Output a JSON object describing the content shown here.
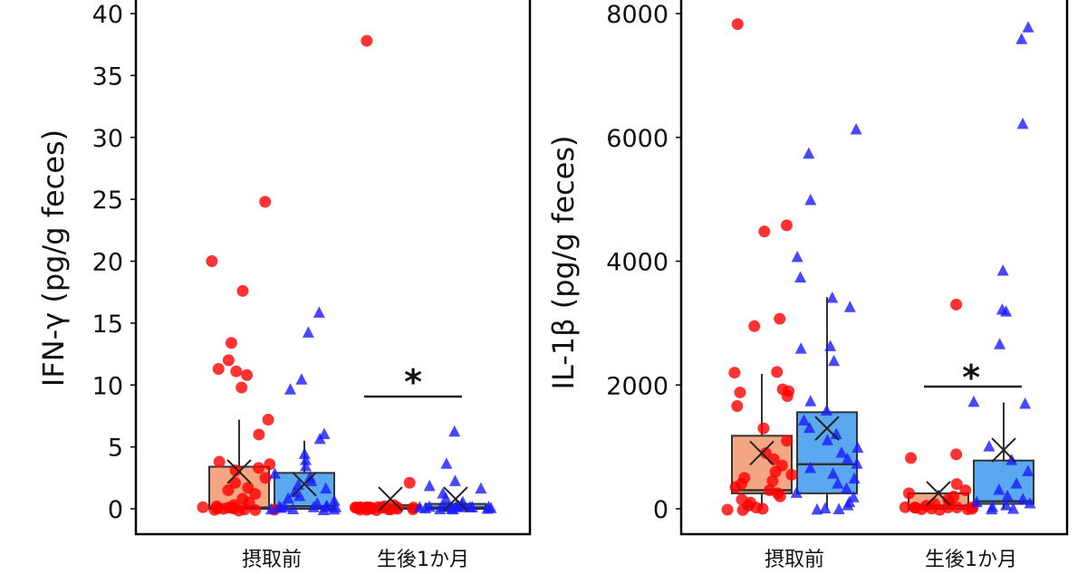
{
  "chart_data": [
    {
      "type": "box",
      "ylabel": "IFN-γ (pg/g feces)",
      "ylim": [
        0,
        40
      ],
      "yticks": [
        0,
        5,
        10,
        15,
        20,
        25,
        30,
        35,
        40
      ],
      "categories": [
        "摂取前",
        "生後1か月"
      ],
      "annotation": "*",
      "colors": {
        "red_fill": "#f4a582",
        "red_points": "#ff0000",
        "blue_fill": "#5aa9f0",
        "blue_points": "#1a1aff"
      },
      "series": [
        {
          "color": "#ff0000",
          "marker": "circle",
          "boxes": [
            {
              "category": "摂取前",
              "min": 0,
              "q1": 0,
              "median": 0.1,
              "q3": 3.4,
              "max": 7.2,
              "mean": 3.0
            },
            {
              "category": "生後1か月",
              "min": 0,
              "q1": 0,
              "median": 0.1,
              "q3": 0.3,
              "max": 0.3,
              "mean": 0.8
            }
          ],
          "points": [
            {
              "category": "摂取前",
              "values": [
                24.8,
                20,
                17.6,
                13.4,
                11.1,
                10.8,
                11.3,
                12,
                9.8,
                7.2,
                6,
                3.8,
                3.6,
                3.3,
                3.1,
                2.5,
                2.1,
                1.7,
                1.5,
                1.2,
                0.8,
                0.5,
                0.3,
                0.2,
                0.1,
                0,
                0,
                0,
                0,
                0,
                0,
                0,
                0,
                0,
                0
              ]
            },
            {
              "category": "生後1か月",
              "values": [
                37.8,
                2.1,
                0.3,
                0.2,
                0.1,
                0,
                0,
                0,
                0,
                0,
                0,
                0,
                0,
                0,
                0,
                0,
                0,
                0,
                0,
                0,
                0,
                0,
                0,
                0,
                0
              ]
            }
          ]
        },
        {
          "color": "#1a1aff",
          "marker": "triangle",
          "boxes": [
            {
              "category": "摂取前",
              "min": 0,
              "q1": 0,
              "median": 0.2,
              "q3": 2.9,
              "max": 5.5,
              "mean": 2.0
            },
            {
              "category": "生後1か月",
              "min": 0,
              "q1": 0,
              "median": 0.1,
              "q3": 0.4,
              "max": 0.4,
              "mean": 0.8
            }
          ],
          "points": [
            {
              "category": "摂取前",
              "values": [
                15.8,
                14.2,
                10.4,
                9.6,
                6,
                5.6,
                4.4,
                3.9,
                3.4,
                2.8,
                2.5,
                2.2,
                1.9,
                1.6,
                1.3,
                1,
                0.8,
                0.6,
                0.4,
                0.2,
                0.1,
                0,
                0,
                0,
                0,
                0,
                0,
                0,
                0,
                0
              ]
            },
            {
              "category": "生後1か月",
              "values": [
                6.2,
                3.6,
                2.2,
                1.8,
                1.6,
                1.2,
                0.8,
                0.5,
                0.3,
                0.2,
                0,
                0,
                0,
                0,
                0,
                0,
                0,
                0,
                0,
                0,
                0,
                0,
                0,
                0,
                0
              ]
            }
          ]
        }
      ]
    },
    {
      "type": "box",
      "ylabel": "IL-1β (pg/g feces)",
      "ylim": [
        0,
        8000
      ],
      "yticks": [
        0,
        2000,
        4000,
        6000,
        8000
      ],
      "categories": [
        "摂取前",
        "生後1か月"
      ],
      "annotation": "*",
      "colors": {
        "red_fill": "#f4a582",
        "red_points": "#ff0000",
        "blue_fill": "#5aa9f0",
        "blue_points": "#1a1aff"
      },
      "series": [
        {
          "color": "#ff0000",
          "marker": "circle",
          "boxes": [
            {
              "category": "摂取前",
              "min": 0,
              "q1": 250,
              "median": 300,
              "q3": 1180,
              "max": 2180,
              "mean": 900
            },
            {
              "category": "生後1か月",
              "min": 0,
              "q1": 0,
              "median": 50,
              "q3": 250,
              "max": 300,
              "mean": 250
            }
          ],
          "points": [
            {
              "category": "摂取前",
              "values": [
                7830,
                4580,
                4480,
                3070,
                2950,
                2210,
                2200,
                1930,
                1900,
                1880,
                1820,
                1660,
                1300,
                1100,
                900,
                800,
                700,
                600,
                550,
                500,
                450,
                400,
                350,
                300,
                250,
                200,
                150,
                100,
                50,
                0,
                0,
                0,
                0
              ]
            },
            {
              "category": "生後1か月",
              "values": [
                3300,
                880,
                820,
                400,
                300,
                250,
                200,
                150,
                100,
                80,
                50,
                0,
                0,
                0,
                0,
                0,
                0,
                0,
                0,
                0,
                0,
                0
              ]
            }
          ]
        },
        {
          "color": "#1a1aff",
          "marker": "triangle",
          "boxes": [
            {
              "category": "摂取前",
              "min": 0,
              "q1": 250,
              "median": 720,
              "q3": 1560,
              "max": 3420,
              "mean": 1300
            },
            {
              "category": "生後1か月",
              "min": 0,
              "q1": 80,
              "median": 120,
              "q3": 780,
              "max": 1720,
              "mean": 950
            }
          ],
          "points": [
            {
              "category": "摂取前",
              "values": [
                6120,
                5730,
                4980,
                4060,
                3730,
                3400,
                3250,
                2620,
                2580,
                2380,
                1730,
                1580,
                1420,
                1300,
                1200,
                1100,
                980,
                900,
                800,
                720,
                650,
                560,
                480,
                400,
                320,
                250,
                180,
                100,
                50,
                0,
                0,
                0
              ]
            },
            {
              "category": "生後1か月",
              "values": [
                7770,
                7580,
                6210,
                3840,
                3210,
                3180,
                2650,
                1720,
                1690,
                1000,
                780,
                600,
                400,
                300,
                200,
                150,
                100,
                80,
                50,
                0,
                0,
                0
              ]
            }
          ]
        }
      ]
    }
  ]
}
